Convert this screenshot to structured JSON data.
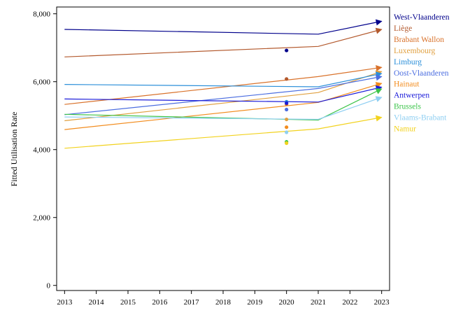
{
  "chart_data": {
    "type": "line",
    "ylabel": "Fitted Utilisation Rate",
    "xlabel": "",
    "title": "",
    "x": [
      2013,
      2021,
      2023
    ],
    "xticks": [
      "2013",
      "2014",
      "2015",
      "2016",
      "2017",
      "2018",
      "2019",
      "2020",
      "2021",
      "2022",
      "2023"
    ],
    "yticks": [
      "0",
      "2,000",
      "4,000",
      "6,000",
      "8,000"
    ],
    "ylim": [
      -150,
      8200
    ],
    "xlim": [
      2012.75,
      2023.25
    ],
    "grid": false,
    "legend_position": "right",
    "series": [
      {
        "name": "West-Vlaanderen",
        "color": "#00008b",
        "values": [
          7540,
          7400,
          7780
        ],
        "point_2020": 6920
      },
      {
        "name": "Liège",
        "color": "#b3592d",
        "values": [
          6730,
          7040,
          7540
        ],
        "point_2020": 6080
      },
      {
        "name": "Brabant Wallon",
        "color": "#d9722b",
        "values": [
          5330,
          6150,
          6420
        ],
        "point_2020": 5340
      },
      {
        "name": "Luxembourg",
        "color": "#e0a040",
        "values": [
          4850,
          5680,
          6300
        ],
        "point_2020": 4890
      },
      {
        "name": "Limburg",
        "color": "#2b8fd9",
        "values": [
          5920,
          5850,
          6240
        ],
        "point_2020": 5410
      },
      {
        "name": "Oost-Vlaanderen",
        "color": "#4c6ee0",
        "values": [
          5030,
          5800,
          6150
        ],
        "point_2020": 5180
      },
      {
        "name": "Hainaut",
        "color": "#f28c1e",
        "values": [
          4590,
          5390,
          5950
        ],
        "point_2020": 4660
      },
      {
        "name": "Antwerpen",
        "color": "#1a1ad9",
        "values": [
          5490,
          5400,
          5840
        ],
        "point_2020": 5370
      },
      {
        "name": "Brussels",
        "color": "#3cc44a",
        "values": [
          5040,
          4870,
          5790
        ],
        "point_2020": 4230
      },
      {
        "name": "Vlaams-Brabant",
        "color": "#8fcff2",
        "values": [
          4960,
          4890,
          5540
        ],
        "point_2020": 4510
      },
      {
        "name": "Namur",
        "color": "#f2d21e",
        "values": [
          4040,
          4610,
          4950
        ],
        "point_2020": 4190
      }
    ]
  }
}
